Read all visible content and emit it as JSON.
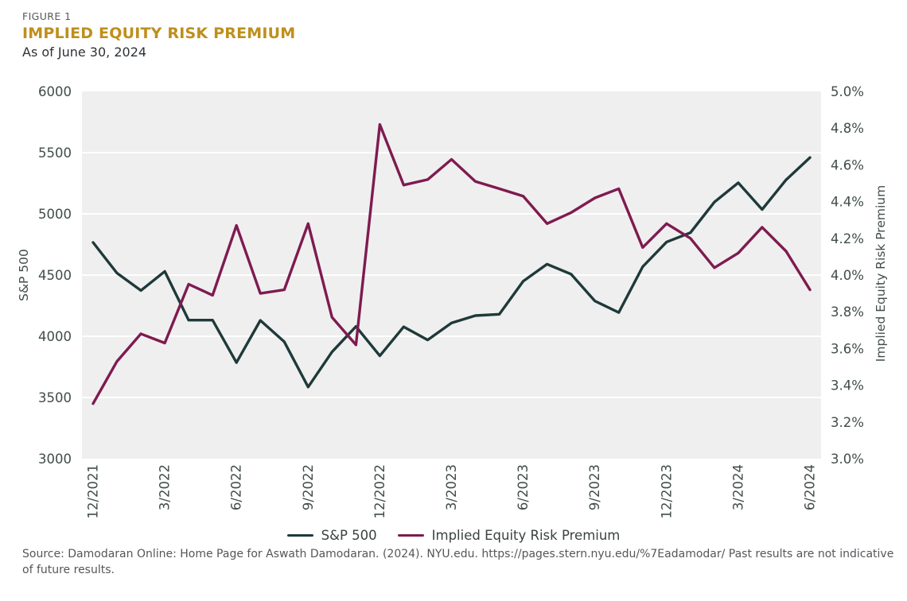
{
  "header": {
    "figure_label": "FIGURE 1",
    "title": "IMPLIED EQUITY RISK PREMIUM",
    "subtitle": "As of June 30, 2024"
  },
  "colors": {
    "accent_gold": "#BE8F1C",
    "sp500_line": "#1F3939",
    "erp_line": "#7E1B50",
    "plot_background": "#EFEFEF",
    "gridline": "#FFFFFF",
    "axis_text": "#414D47",
    "muted_text": "#55565A"
  },
  "chart_data": {
    "type": "line",
    "x": [
      "12/2021",
      "1/2022",
      "2/2022",
      "3/2022",
      "4/2022",
      "5/2022",
      "6/2022",
      "7/2022",
      "8/2022",
      "9/2022",
      "10/2022",
      "11/2022",
      "12/2022",
      "1/2023",
      "2/2023",
      "3/2023",
      "4/2023",
      "5/2023",
      "6/2023",
      "7/2023",
      "8/2023",
      "9/2023",
      "10/2023",
      "11/2023",
      "12/2023",
      "1/2024",
      "2/2024",
      "3/2024",
      "4/2024",
      "5/2024",
      "6/2024"
    ],
    "x_tick_labels": [
      "12/2021",
      "3/2022",
      "6/2022",
      "9/2022",
      "12/2022",
      "3/2023",
      "6/2023",
      "9/2023",
      "12/2023",
      "3/2024",
      "6/2024"
    ],
    "x_tick_every_n_months": 3,
    "series": [
      {
        "name": "S&P 500",
        "axis": "left",
        "color": "#1F3939",
        "values": [
          4766,
          4516,
          4374,
          4530,
          4132,
          4132,
          3785,
          4130,
          3955,
          3586,
          3872,
          4080,
          3840,
          4077,
          3970,
          4109,
          4169,
          4180,
          4450,
          4589,
          4508,
          4288,
          4194,
          4568,
          4770,
          4846,
          5096,
          5254,
          5036,
          5278,
          5460
        ]
      },
      {
        "name": "Implied Equity Risk Premium",
        "axis": "right",
        "color": "#7E1B50",
        "values": [
          3.3,
          3.53,
          3.68,
          3.63,
          3.95,
          3.89,
          4.27,
          3.9,
          3.92,
          4.28,
          3.77,
          3.62,
          4.82,
          4.49,
          4.52,
          4.63,
          4.51,
          4.47,
          4.43,
          4.28,
          4.34,
          4.42,
          4.47,
          4.15,
          4.28,
          4.2,
          4.04,
          4.12,
          4.26,
          4.13,
          3.92
        ]
      }
    ],
    "left_axis": {
      "label": "S&P 500",
      "min": 3000,
      "max": 6000,
      "ticks": [
        6000,
        5500,
        5000,
        4500,
        4000,
        3500,
        3000
      ]
    },
    "right_axis": {
      "label": "Implied Equity Risk Premium",
      "min": 3.0,
      "max": 5.0,
      "ticks": [
        "5.0%",
        "4.8%",
        "4.6%",
        "4.4%",
        "4.2%",
        "4.0%",
        "3.8%",
        "3.6%",
        "3.4%",
        "3.2%",
        "3.0%"
      ]
    },
    "grid": "horizontal white gridlines on light gray plot area, at each left-axis tick",
    "legend_position": "bottom-center"
  },
  "legend": {
    "items": [
      {
        "label": "S&P 500",
        "color": "#1F3939"
      },
      {
        "label": "Implied Equity Risk Premium",
        "color": "#7E1B50"
      }
    ]
  },
  "source": {
    "text": "Source: Damodaran Online: Home Page for Aswath Damodaran. (2024). NYU.edu. https://pages.stern.nyu.edu/%7Eadamodar/ Past results are not indicative of future results."
  }
}
